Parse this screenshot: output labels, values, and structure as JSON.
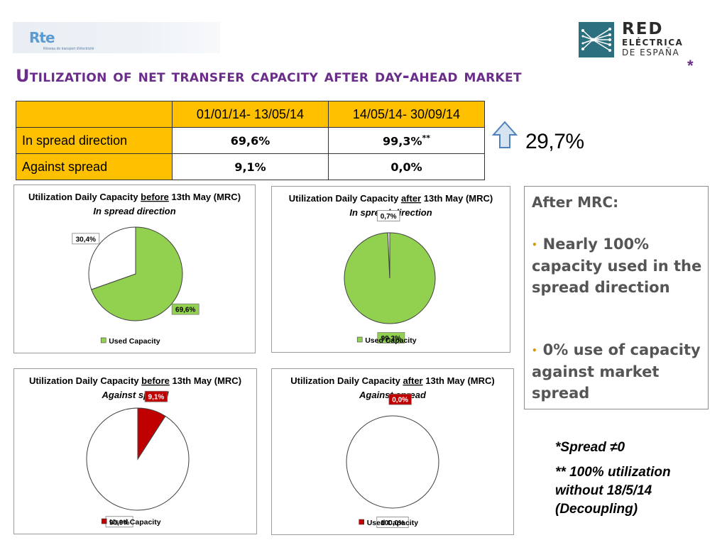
{
  "logos": {
    "rte_mark": "Rte",
    "rte_tagline": "Réseau de transport d'électricité",
    "ree_line1": "RED",
    "ree_line2": "ELÉCTRICA",
    "ree_line3": "DE ESPAÑA"
  },
  "title": "Utilization of net transfer capacity after day-ahead market",
  "title_star": "*",
  "table": {
    "headers": [
      "",
      "01/01/14- 13/05/14",
      "14/05/14- 30/09/14"
    ],
    "rows": [
      {
        "label": "In spread direction",
        "v1": "69,6%",
        "v2": "99,3%",
        "v2_sup": "**"
      },
      {
        "label": "Against spread",
        "v1": "9,1%",
        "v2": "0,0%"
      }
    ]
  },
  "increase": {
    "icon": "up-arrow-icon",
    "value": "29,7%"
  },
  "after_mrc": {
    "heading": "After MRC:",
    "bullets": [
      "Nearly 100% capacity used in the spread direction",
      "0% use of capacity against market spread"
    ],
    "bullet_color": "#d49a00"
  },
  "notes": {
    "spread": "*Spread ≠0",
    "utilization": "** 100% utilization without 18/5/14 (Decoupling)"
  },
  "chart_data": [
    {
      "type": "pie",
      "title": "Utilization Daily Capacity before 13th May (MRC)",
      "title_pre": "Utilization Daily Capacity ",
      "title_ul": "before",
      "title_post": " 13th May (MRC)",
      "subtitle": "In spread direction",
      "values": [
        69.6,
        30.4
      ],
      "labels": [
        "69,6%",
        "30,4%"
      ],
      "colors": [
        "#92d050",
        "#ffffff"
      ],
      "legend": "Used Capacity",
      "legend_color": "#92d050"
    },
    {
      "type": "pie",
      "title": "Utilization Daily Capacity after 13th May (MRC)",
      "title_pre": "Utilization Daily Capacity ",
      "title_ul": "after",
      "title_post": " 13th May (MRC)",
      "subtitle": "In spread direction",
      "values": [
        99.3,
        0.7
      ],
      "labels": [
        "99,3%",
        "0,7%"
      ],
      "colors": [
        "#92d050",
        "#ffffff"
      ],
      "legend": "Used Capacity",
      "legend_color": "#92d050"
    },
    {
      "type": "pie",
      "title": "Utilization Daily Capacity before 13th May (MRC)",
      "title_pre": "Utilization Daily Capacity ",
      "title_ul": "before",
      "title_post": " 13th May (MRC)",
      "subtitle": "Against spread",
      "values": [
        9.1,
        90.9
      ],
      "labels": [
        "9,1%",
        "90,9%"
      ],
      "colors": [
        "#c00000",
        "#ffffff"
      ],
      "legend": "Used Capacity",
      "legend_color": "#c00000"
    },
    {
      "type": "pie",
      "title": "Utilization Daily Capacity after 13th May (MRC)",
      "title_pre": "Utilization Daily Capacity ",
      "title_ul": "after",
      "title_post": " 13th May (MRC)",
      "subtitle": "Against spread",
      "values": [
        0.0,
        100.0
      ],
      "labels": [
        "0,0%",
        "100,0%"
      ],
      "colors": [
        "#c00000",
        "#ffffff"
      ],
      "legend": "Used Capacity",
      "legend_color": "#c00000"
    }
  ]
}
